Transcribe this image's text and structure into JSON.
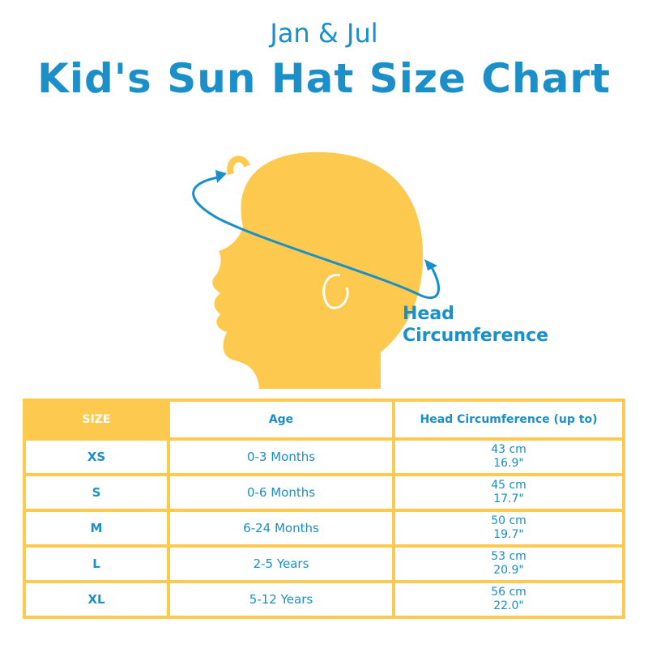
{
  "brand": "Jan & Jul",
  "title": "Kid's Sun Hat Size Chart",
  "illustration": {
    "label_line1": "Head",
    "label_line2": "Circumference",
    "head_color": "#fdc94e",
    "arrow_color": "#1b8fc7"
  },
  "table": {
    "headers": [
      "SIZE",
      "Age",
      "Head Circumference (up to)"
    ],
    "rows": [
      {
        "size": "XS",
        "age": "0-3 Months",
        "cm": "43 cm",
        "in": "16.9\""
      },
      {
        "size": "S",
        "age": "0-6 Months",
        "cm": "45 cm",
        "in": "17.7\""
      },
      {
        "size": "M",
        "age": "6-24 Months",
        "cm": "50 cm",
        "in": "19.7\""
      },
      {
        "size": "L",
        "age": "2-5 Years",
        "cm": "53 cm",
        "in": "20.9\""
      },
      {
        "size": "XL",
        "age": "5-12 Years",
        "cm": "56 cm",
        "in": "22.0\""
      }
    ]
  }
}
